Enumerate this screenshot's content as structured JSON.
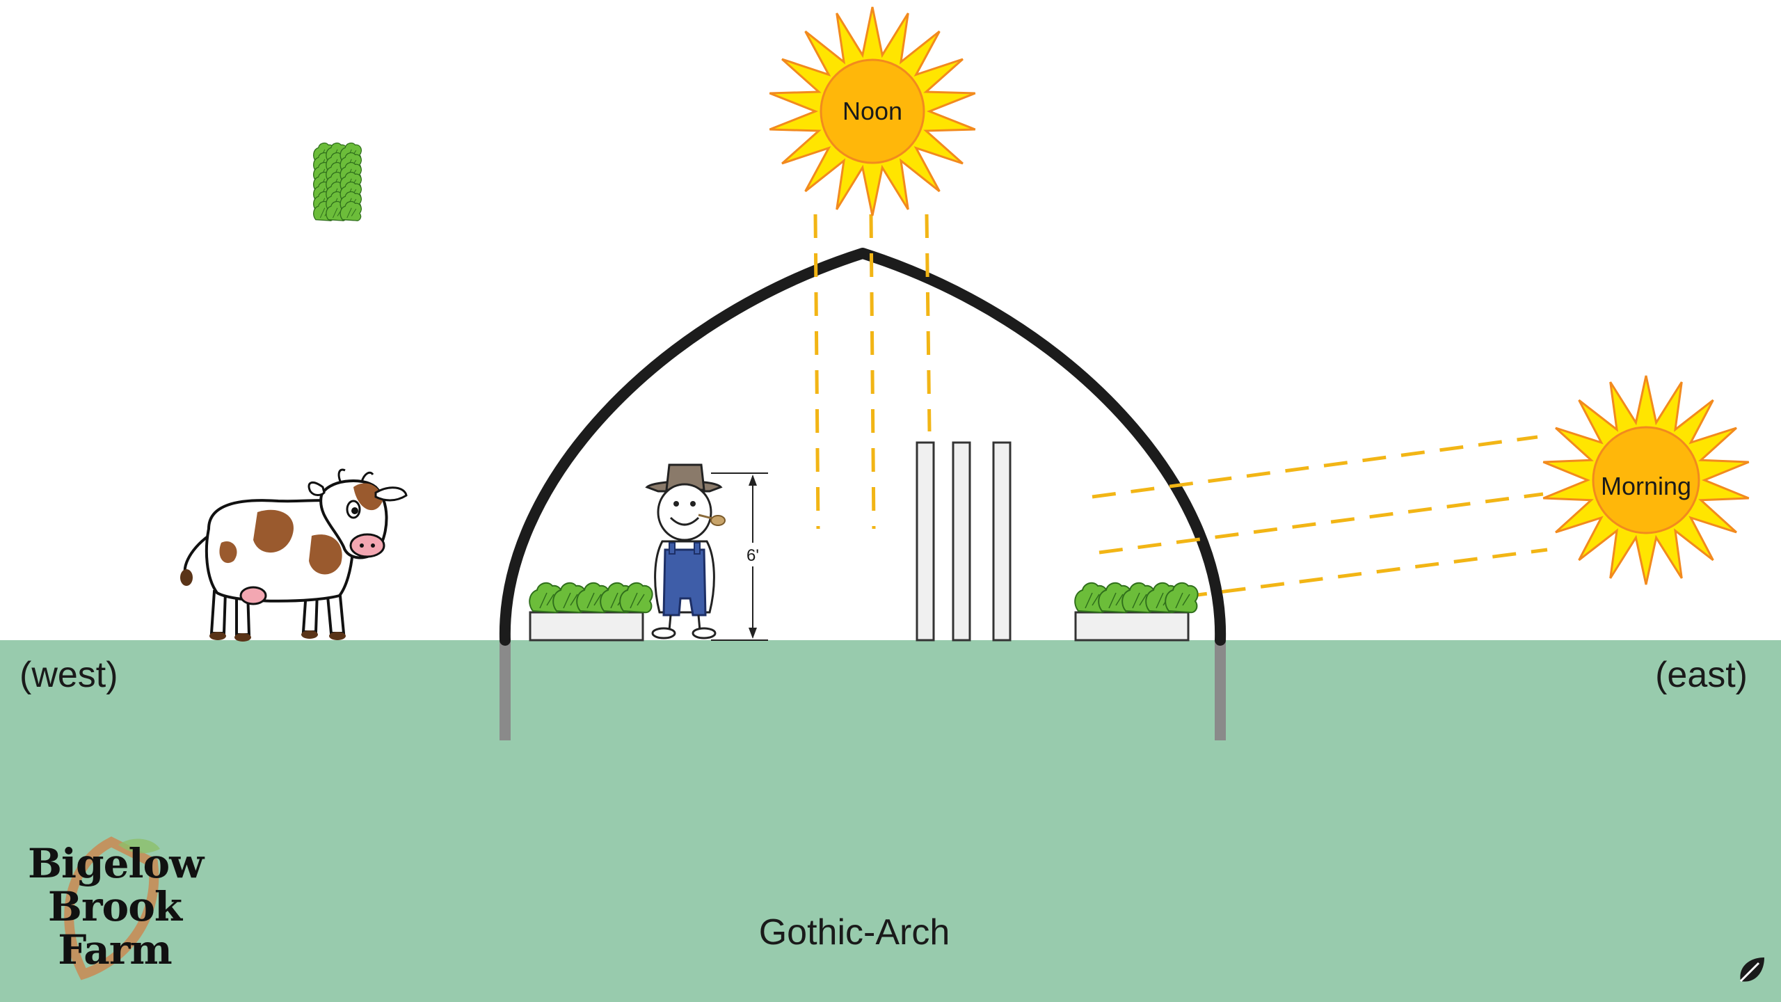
{
  "diagram": {
    "caption": "Gothic-Arch",
    "west_label": "(west)",
    "east_label": "(east)",
    "height_marker": "6'",
    "sun_noon_label": "Noon",
    "sun_morning_label": "Morning",
    "logo_lines": [
      "Bigelow",
      "Brook",
      "Farm"
    ]
  },
  "colors": {
    "ground": "#98cbad",
    "arch": "#1c1c1c",
    "post": "#8a8a8a",
    "sun_core": "#ffb70a",
    "sun_rays": "#ffe500",
    "sun_outline": "#f28a1e",
    "light_beam": "#f2b515",
    "plant": "#6cbd3a",
    "planter": "#f0f0f0"
  },
  "icons": [
    "sun-noon-icon",
    "sun-morning-icon",
    "cow-icon",
    "farmer-icon",
    "planter-icon",
    "vertical-tower-icon",
    "logo-leaf-icon",
    "corner-leaf-icon"
  ]
}
